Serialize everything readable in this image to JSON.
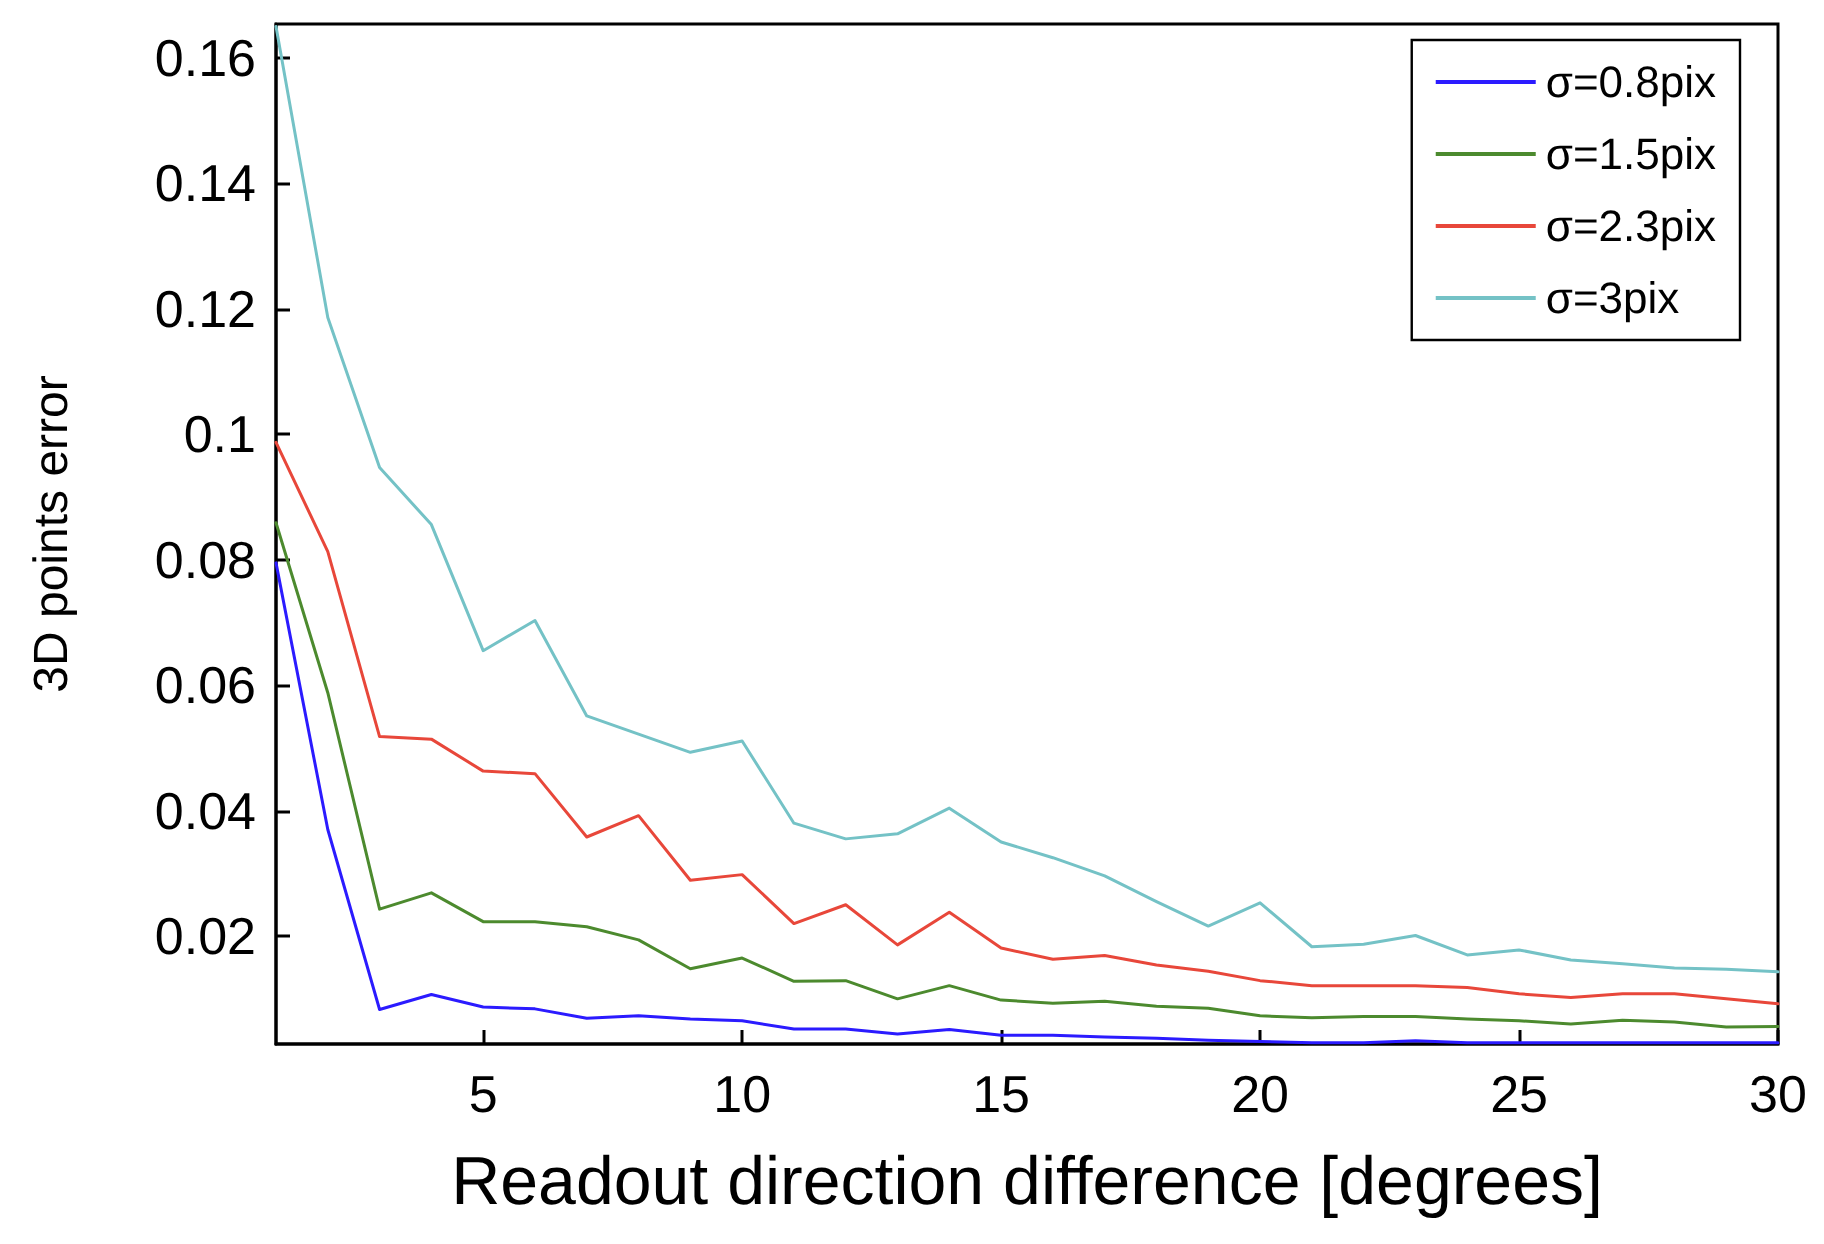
{
  "chart_data": {
    "type": "line",
    "xlabel": "Readout direction difference [degrees]",
    "ylabel": "3D points error",
    "x": [
      1,
      2,
      3,
      4,
      5,
      6,
      7,
      8,
      9,
      10,
      11,
      12,
      13,
      14,
      15,
      16,
      17,
      18,
      19,
      20,
      21,
      22,
      23,
      24,
      25,
      26,
      27,
      28,
      29,
      30
    ],
    "series": [
      {
        "name": "σ=0.8pix",
        "color": "#2b1bff",
        "values": [
          0.0795,
          0.037,
          0.0083,
          0.0107,
          0.0087,
          0.0084,
          0.0069,
          0.0073,
          0.0068,
          0.0065,
          0.0052,
          0.0052,
          0.0044,
          0.0051,
          0.0042,
          0.0042,
          0.0039,
          0.0037,
          0.0034,
          0.0032,
          0.003,
          0.003,
          0.0033,
          0.003,
          0.003,
          0.003,
          0.003,
          0.003,
          0.003,
          0.003
        ]
      },
      {
        "name": "σ=1.5pix",
        "color": "#4c8a2e",
        "values": [
          0.0859,
          0.0588,
          0.0243,
          0.0269,
          0.0223,
          0.0223,
          0.0215,
          0.0194,
          0.0148,
          0.0165,
          0.0128,
          0.0129,
          0.01,
          0.0121,
          0.0098,
          0.0093,
          0.0096,
          0.0088,
          0.0085,
          0.0073,
          0.007,
          0.0072,
          0.0072,
          0.0068,
          0.0065,
          0.006,
          0.0066,
          0.0063,
          0.0055,
          0.0056
        ]
      },
      {
        "name": "σ=2.3pix",
        "color": "#e8473a",
        "values": [
          0.0987,
          0.0813,
          0.0518,
          0.0514,
          0.0463,
          0.0459,
          0.0358,
          0.0392,
          0.0289,
          0.0298,
          0.022,
          0.025,
          0.0186,
          0.0238,
          0.0181,
          0.0163,
          0.0169,
          0.0154,
          0.0144,
          0.0129,
          0.0121,
          0.0121,
          0.0121,
          0.0118,
          0.0108,
          0.0102,
          0.0108,
          0.0108,
          0.01,
          0.0092
        ]
      },
      {
        "name": "σ=3pix",
        "color": "#74c2c6",
        "values": [
          0.165,
          0.1186,
          0.0947,
          0.0856,
          0.0655,
          0.0703,
          0.0551,
          0.0522,
          0.0493,
          0.0511,
          0.038,
          0.0355,
          0.0363,
          0.0404,
          0.035,
          0.0325,
          0.0296,
          0.0255,
          0.0216,
          0.0253,
          0.0183,
          0.0187,
          0.0201,
          0.017,
          0.0178,
          0.0162,
          0.0156,
          0.0149,
          0.0147,
          0.0143
        ]
      }
    ],
    "xlim": [
      1,
      30
    ],
    "xticks": [
      5,
      10,
      15,
      20,
      25,
      30
    ],
    "ylim": [
      0.0028,
      0.1654
    ],
    "yticks": [
      0.02,
      0.04,
      0.06,
      0.08,
      0.1,
      0.12,
      0.14,
      0.16
    ],
    "grid": false,
    "legend": "top right",
    "marker": "none",
    "line_style": "solid"
  }
}
